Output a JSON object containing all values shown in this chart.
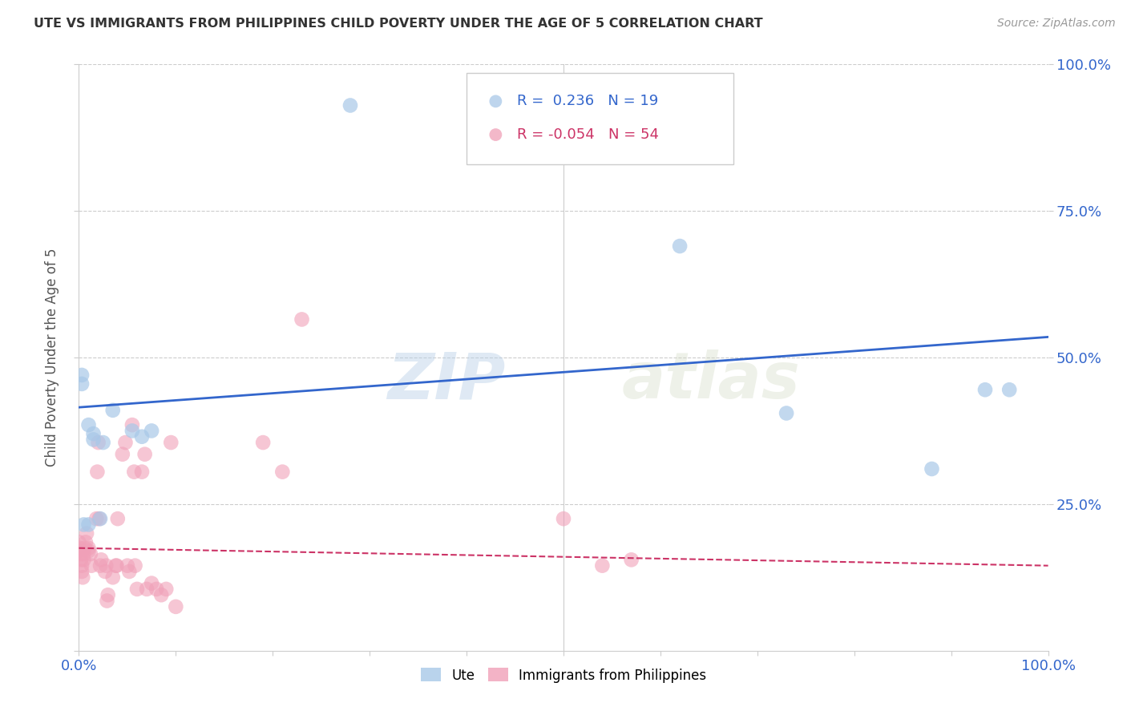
{
  "title": "UTE VS IMMIGRANTS FROM PHILIPPINES CHILD POVERTY UNDER THE AGE OF 5 CORRELATION CHART",
  "source": "Source: ZipAtlas.com",
  "ylabel": "Child Poverty Under the Age of 5",
  "xlim": [
    0.0,
    1.0
  ],
  "ylim": [
    0.0,
    1.0
  ],
  "watermark_zip": "ZIP",
  "watermark_atlas": "atlas",
  "legend_ute_R": "0.236",
  "legend_ute_N": "19",
  "legend_phil_R": "-0.054",
  "legend_phil_N": "54",
  "ute_color": "#a8c8e8",
  "phil_color": "#f0a0b8",
  "line_ute_color": "#3366cc",
  "line_phil_color": "#cc3366",
  "tick_color": "#3366cc",
  "background_color": "#ffffff",
  "grid_color": "#cccccc",
  "ute_points_x": [
    0.003,
    0.003,
    0.005,
    0.01,
    0.01,
    0.015,
    0.015,
    0.022,
    0.025,
    0.035,
    0.055,
    0.065,
    0.075,
    0.28,
    0.62,
    0.73,
    0.88,
    0.935,
    0.96
  ],
  "ute_points_y": [
    0.47,
    0.455,
    0.215,
    0.215,
    0.385,
    0.37,
    0.36,
    0.225,
    0.355,
    0.41,
    0.375,
    0.365,
    0.375,
    0.93,
    0.69,
    0.405,
    0.31,
    0.445,
    0.445
  ],
  "phil_points_x": [
    0.0,
    0.0,
    0.0,
    0.002,
    0.002,
    0.003,
    0.003,
    0.004,
    0.005,
    0.005,
    0.006,
    0.007,
    0.008,
    0.01,
    0.01,
    0.012,
    0.013,
    0.018,
    0.019,
    0.02,
    0.021,
    0.022,
    0.023,
    0.027,
    0.028,
    0.029,
    0.03,
    0.035,
    0.038,
    0.039,
    0.04,
    0.045,
    0.048,
    0.05,
    0.052,
    0.055,
    0.057,
    0.058,
    0.06,
    0.065,
    0.068,
    0.07,
    0.075,
    0.08,
    0.085,
    0.09,
    0.095,
    0.1,
    0.19,
    0.21,
    0.23,
    0.5,
    0.54,
    0.57
  ],
  "phil_points_y": [
    0.185,
    0.175,
    0.17,
    0.165,
    0.155,
    0.145,
    0.135,
    0.125,
    0.155,
    0.165,
    0.175,
    0.185,
    0.2,
    0.175,
    0.17,
    0.165,
    0.145,
    0.225,
    0.305,
    0.355,
    0.225,
    0.145,
    0.155,
    0.135,
    0.145,
    0.085,
    0.095,
    0.125,
    0.145,
    0.145,
    0.225,
    0.335,
    0.355,
    0.145,
    0.135,
    0.385,
    0.305,
    0.145,
    0.105,
    0.305,
    0.335,
    0.105,
    0.115,
    0.105,
    0.095,
    0.105,
    0.355,
    0.075,
    0.355,
    0.305,
    0.565,
    0.225,
    0.145,
    0.155
  ],
  "ute_line_x": [
    0.0,
    1.0
  ],
  "ute_line_y": [
    0.415,
    0.535
  ],
  "phil_line_x": [
    0.0,
    1.0
  ],
  "phil_line_y": [
    0.175,
    0.145
  ]
}
